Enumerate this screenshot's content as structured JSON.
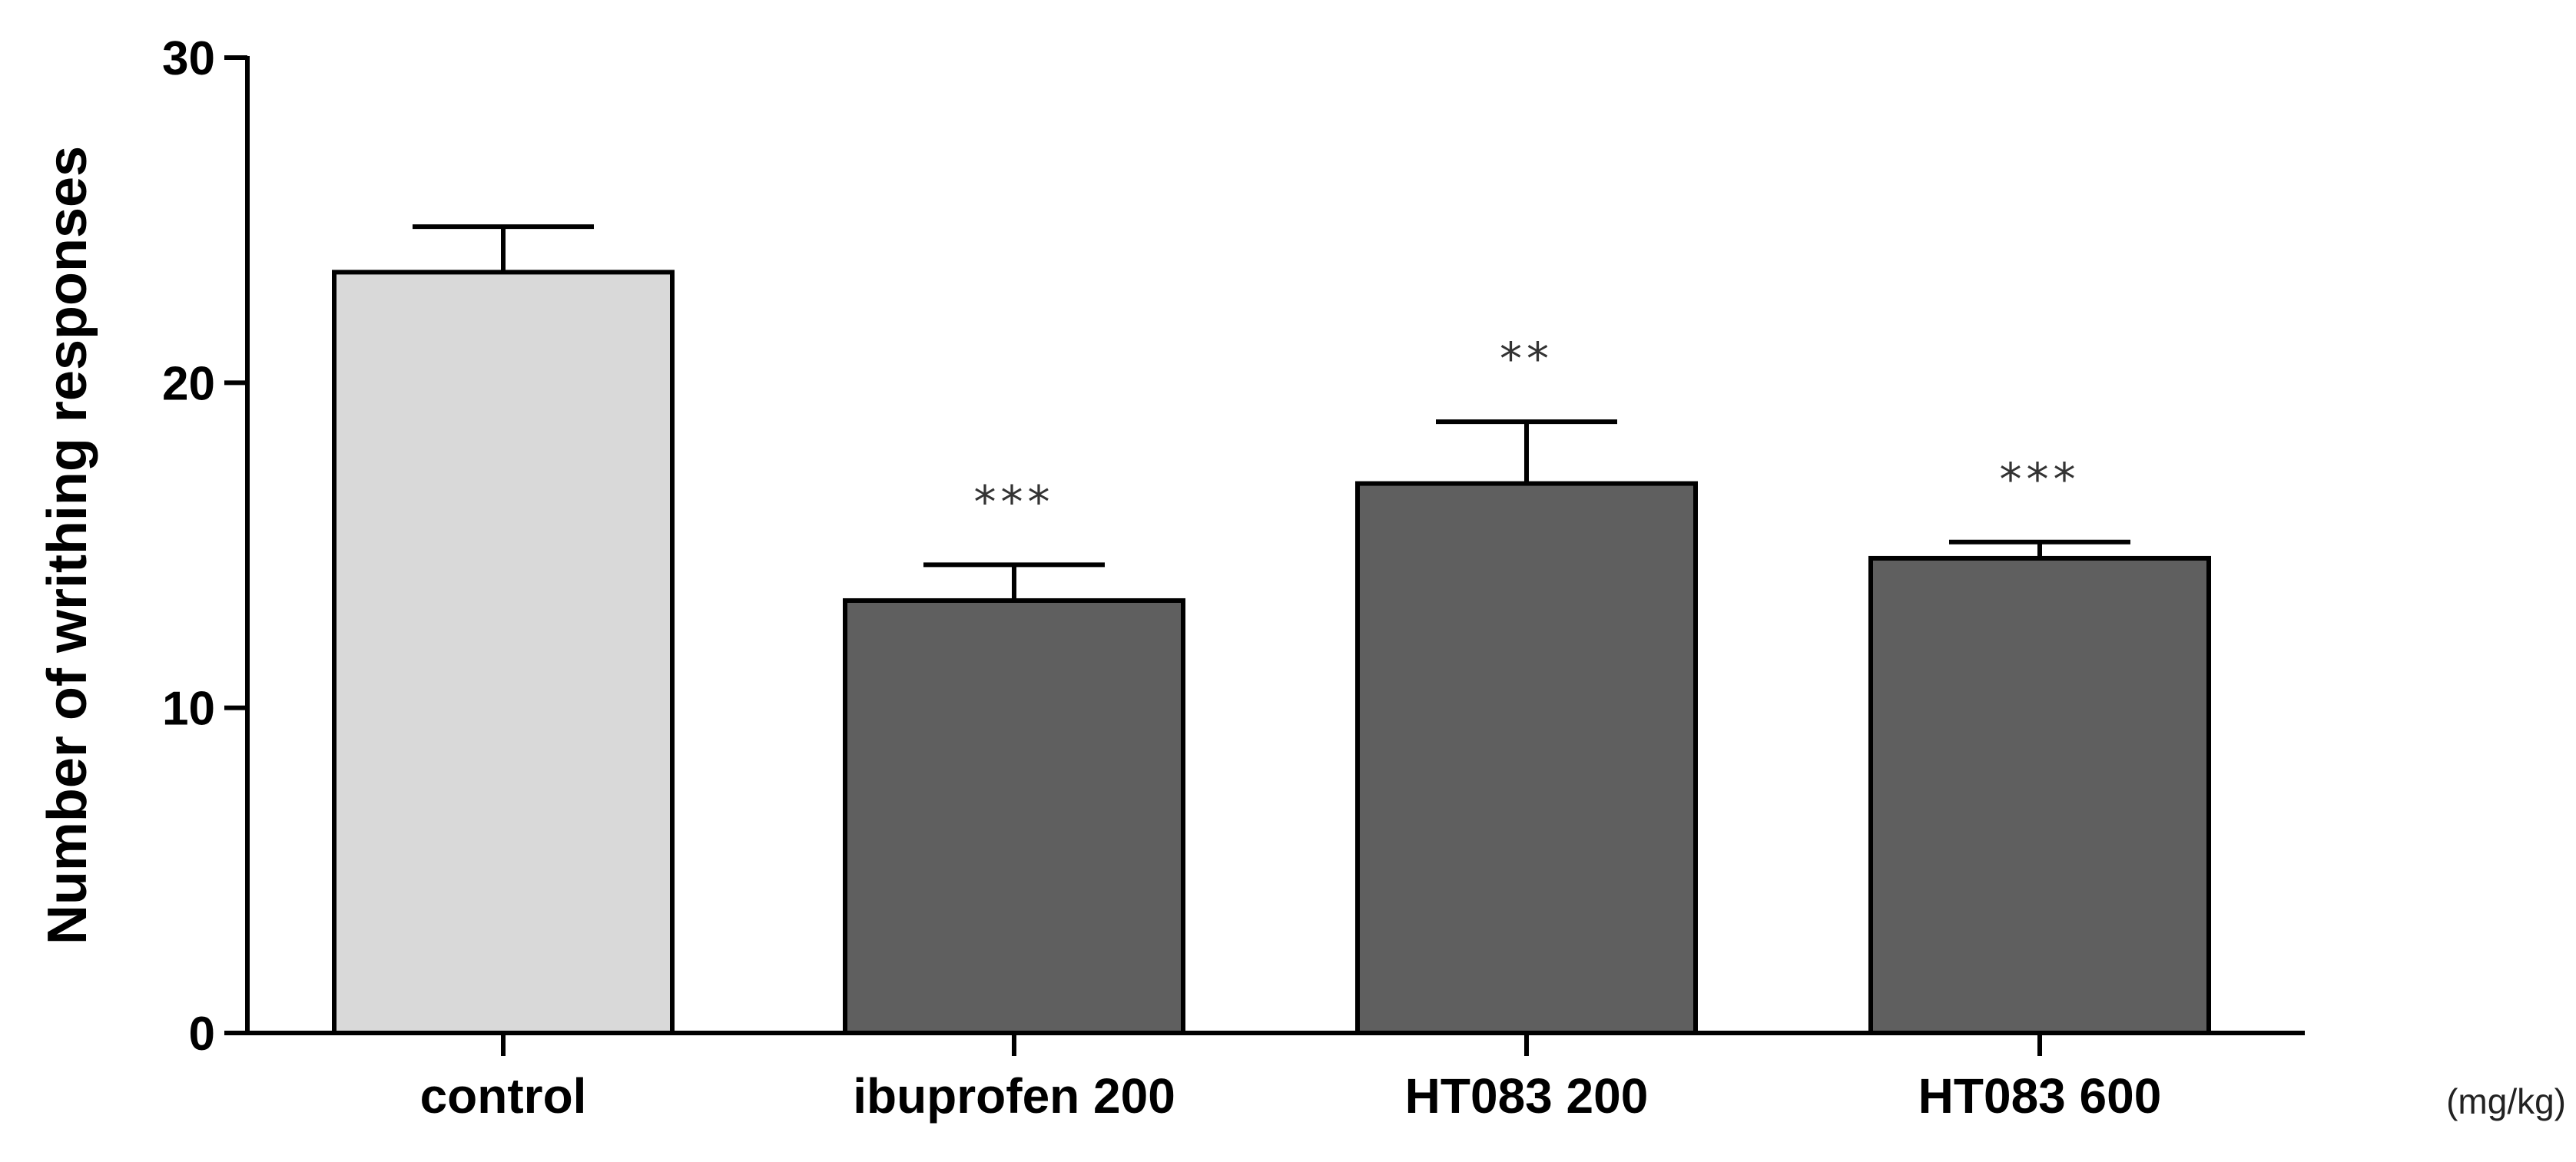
{
  "chart_data": {
    "type": "bar",
    "title": "",
    "xlabel": "",
    "ylabel": "Number of writhing responses",
    "unit_note": "(mg/kg)",
    "ylim": [
      0,
      30
    ],
    "yticks": [
      0,
      10,
      20,
      30
    ],
    "grid": false,
    "categories": [
      "control",
      "ibuprofen 200",
      "HT083 200",
      "HT083 600"
    ],
    "values": [
      23.4,
      13.3,
      16.9,
      14.6
    ],
    "errors": [
      1.4,
      1.1,
      1.9,
      0.5
    ],
    "significance": [
      "",
      "***",
      "**",
      "***"
    ],
    "colors": [
      "#d9d9d9",
      "#5f5f5f",
      "#5f5f5f",
      "#5f5f5f"
    ]
  }
}
